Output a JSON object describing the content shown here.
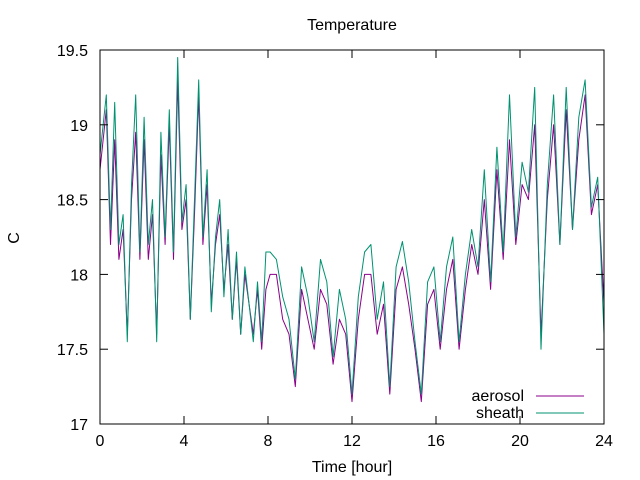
{
  "chart_data": {
    "type": "line",
    "title": "Temperature",
    "xlabel": "Time [hour]",
    "ylabel": "C",
    "xlim": [
      0,
      24
    ],
    "ylim": [
      17,
      19.5
    ],
    "xticks": [
      0,
      4,
      8,
      12,
      16,
      20,
      24
    ],
    "yticks": [
      17,
      17.5,
      18,
      18.5,
      19,
      19.5
    ],
    "xtick_labels": [
      "0",
      "4",
      "8",
      "12",
      "16",
      "20",
      "24"
    ],
    "ytick_labels": [
      "17",
      "17.5",
      "18",
      "18.5",
      "19",
      "19.5"
    ],
    "grid": false,
    "legend_position": "bottom-right",
    "x": [
      0.0,
      0.3,
      0.5,
      0.7,
      0.9,
      1.1,
      1.3,
      1.5,
      1.7,
      1.9,
      2.1,
      2.3,
      2.5,
      2.7,
      2.9,
      3.1,
      3.3,
      3.5,
      3.7,
      3.9,
      4.1,
      4.3,
      4.5,
      4.7,
      4.9,
      5.1,
      5.3,
      5.5,
      5.7,
      5.9,
      6.1,
      6.3,
      6.5,
      6.7,
      6.9,
      7.1,
      7.3,
      7.5,
      7.7,
      7.9,
      8.1,
      8.4,
      8.7,
      9.0,
      9.3,
      9.6,
      9.9,
      10.2,
      10.5,
      10.8,
      11.1,
      11.4,
      11.7,
      12.0,
      12.3,
      12.6,
      12.9,
      13.2,
      13.5,
      13.8,
      14.1,
      14.4,
      14.7,
      15.0,
      15.3,
      15.6,
      15.9,
      16.2,
      16.5,
      16.8,
      17.1,
      17.4,
      17.7,
      18.0,
      18.3,
      18.6,
      18.9,
      19.2,
      19.5,
      19.8,
      20.1,
      20.4,
      20.7,
      21.0,
      21.3,
      21.6,
      21.9,
      22.2,
      22.5,
      22.8,
      23.1,
      23.4,
      23.7,
      24.0
    ],
    "series": [
      {
        "name": "aerosol",
        "color": "#8b008b",
        "values": [
          18.7,
          19.1,
          18.2,
          18.9,
          18.1,
          18.3,
          17.6,
          18.5,
          18.95,
          18.1,
          18.9,
          18.1,
          18.4,
          17.6,
          18.8,
          18.2,
          19.0,
          18.1,
          19.3,
          18.3,
          18.5,
          17.7,
          18.4,
          19.2,
          18.2,
          18.6,
          17.8,
          18.2,
          18.4,
          17.9,
          18.2,
          17.7,
          18.1,
          17.6,
          18.0,
          17.8,
          17.6,
          17.9,
          17.5,
          17.9,
          18.0,
          18.0,
          17.7,
          17.6,
          17.25,
          17.9,
          17.7,
          17.5,
          17.9,
          17.8,
          17.4,
          17.7,
          17.6,
          17.15,
          17.7,
          18.0,
          18.0,
          17.6,
          17.8,
          17.2,
          17.9,
          18.05,
          17.8,
          17.5,
          17.15,
          17.8,
          17.9,
          17.5,
          17.9,
          18.1,
          17.5,
          17.9,
          18.2,
          18.0,
          18.5,
          17.9,
          18.7,
          18.1,
          18.9,
          18.2,
          18.6,
          18.5,
          19.0,
          17.6,
          18.5,
          19.0,
          18.2,
          19.1,
          18.3,
          18.9,
          19.2,
          18.4,
          18.6,
          17.8
        ]
      },
      {
        "name": "sheath",
        "color": "#009270",
        "values": [
          18.8,
          19.2,
          18.3,
          19.15,
          18.2,
          18.4,
          17.55,
          18.6,
          19.2,
          18.15,
          19.05,
          18.2,
          18.5,
          17.55,
          18.95,
          18.25,
          19.1,
          18.15,
          19.45,
          18.35,
          18.6,
          17.7,
          18.5,
          19.3,
          18.25,
          18.7,
          17.75,
          18.25,
          18.5,
          17.85,
          18.3,
          17.7,
          18.15,
          17.6,
          18.05,
          17.8,
          17.55,
          17.95,
          17.55,
          18.15,
          18.15,
          18.1,
          17.85,
          17.7,
          17.3,
          18.05,
          17.85,
          17.55,
          18.1,
          17.95,
          17.45,
          17.9,
          17.7,
          17.2,
          17.85,
          18.15,
          18.2,
          17.7,
          17.95,
          17.25,
          18.05,
          18.22,
          17.95,
          17.55,
          17.2,
          17.95,
          18.05,
          17.55,
          18.05,
          18.25,
          17.55,
          18.0,
          18.3,
          18.05,
          18.7,
          17.95,
          18.85,
          18.15,
          19.2,
          18.25,
          18.75,
          18.55,
          19.25,
          17.5,
          18.6,
          19.2,
          18.2,
          19.25,
          18.3,
          19.05,
          19.3,
          18.45,
          18.65,
          17.6
        ]
      }
    ]
  }
}
